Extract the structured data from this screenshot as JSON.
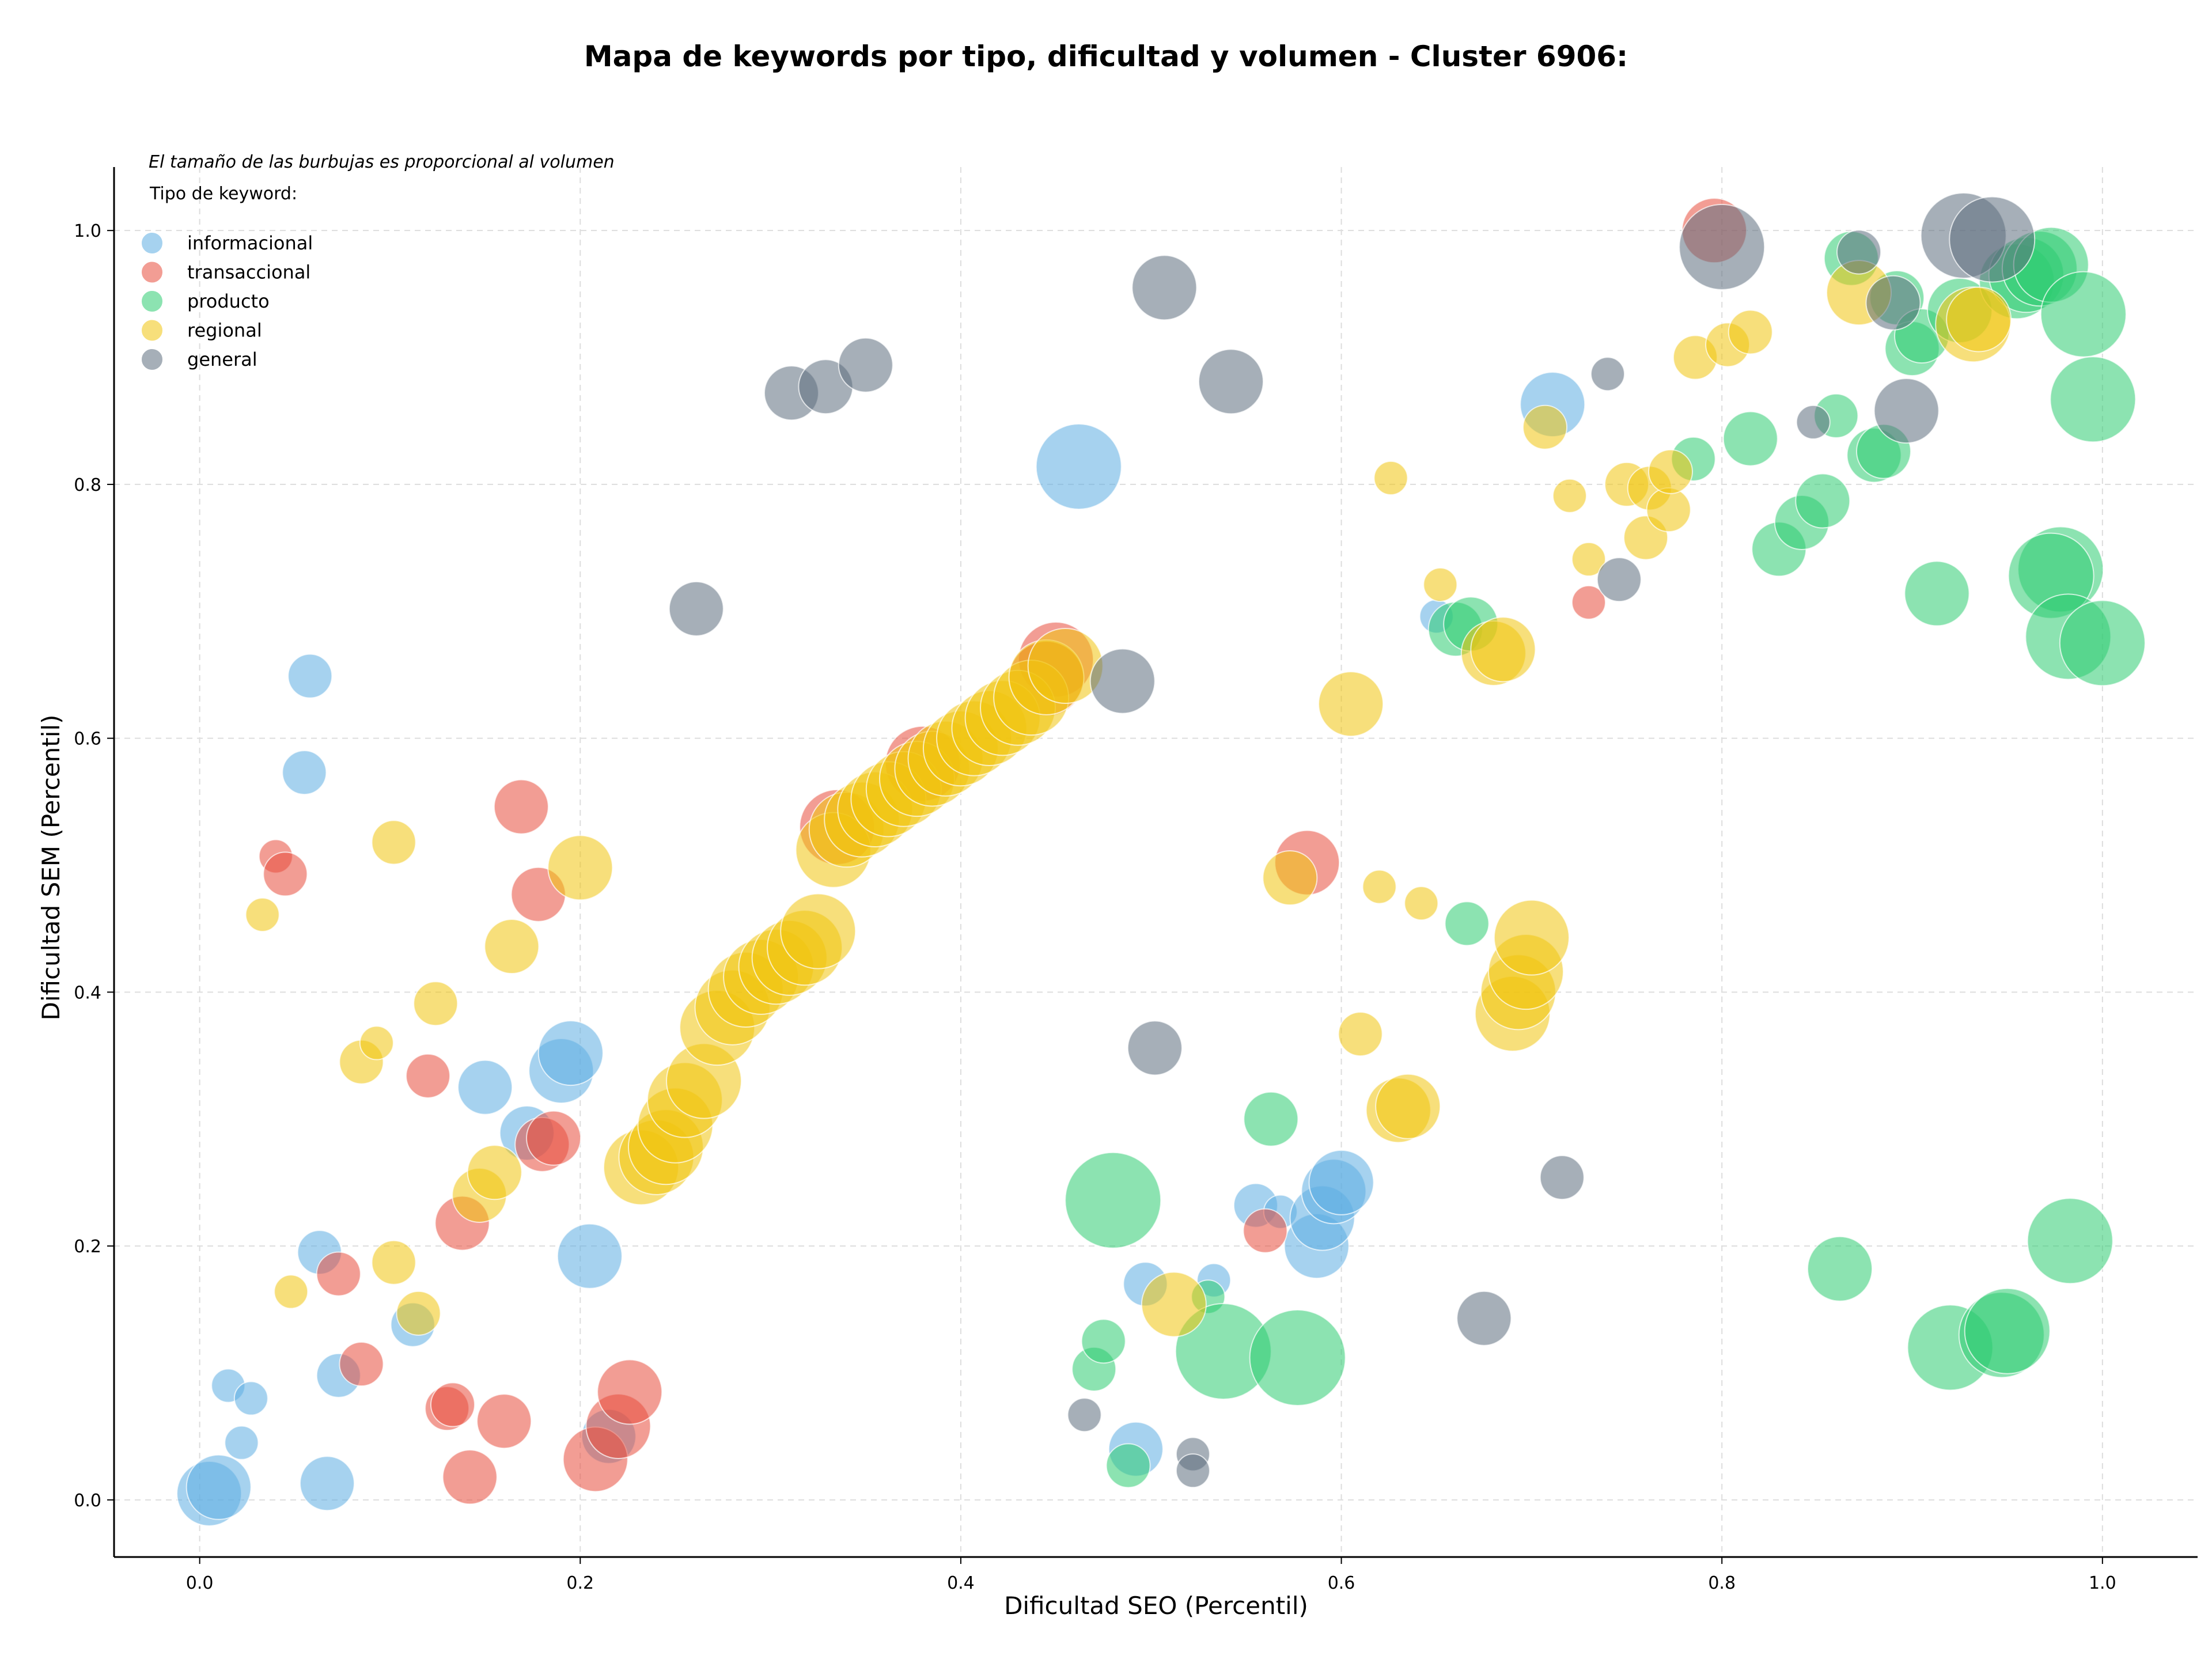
{
  "chart_data": {
    "type": "scatter",
    "title": "Mapa de keywords por tipo, dificultad y volumen - Cluster 6906:",
    "xlabel": "Dificultad SEO (Percentil)",
    "ylabel": "Dificultad SEM (Percentil)",
    "xlim": [
      -0.045,
      1.05
    ],
    "ylim": [
      -0.045,
      1.05
    ],
    "xticks": [
      0.0,
      0.2,
      0.4,
      0.6,
      0.8,
      1.0
    ],
    "yticks": [
      0.0,
      0.2,
      0.4,
      0.6,
      0.8,
      1.0
    ],
    "xtick_labels": [
      "0.0",
      "0.2",
      "0.4",
      "0.6",
      "0.8",
      "1.0"
    ],
    "ytick_labels": [
      "0.0",
      "0.2",
      "0.4",
      "0.6",
      "0.8",
      "1.0"
    ],
    "grid": true,
    "legend": {
      "placement": "top-left",
      "note": "El tamaño de las burbujas es proporcional al volumen",
      "title": "Tipo de keyword:",
      "entries": [
        {
          "name": "informacional",
          "color": "#5dade2"
        },
        {
          "name": "transaccional",
          "color": "#e74c3c"
        },
        {
          "name": "producto",
          "color": "#2ecc71"
        },
        {
          "name": "regional",
          "color": "#f1c40f"
        },
        {
          "name": "general",
          "color": "#5d6d7e"
        }
      ]
    },
    "series": [
      {
        "name": "informacional",
        "color": "#5dade2",
        "points": [
          {
            "x": 0.005,
            "y": 0.005,
            "size": 4
          },
          {
            "x": 0.01,
            "y": 0.01,
            "size": 4
          },
          {
            "x": 0.015,
            "y": 0.09,
            "size": 1
          },
          {
            "x": 0.022,
            "y": 0.045,
            "size": 1
          },
          {
            "x": 0.027,
            "y": 0.08,
            "size": 1
          },
          {
            "x": 0.055,
            "y": 0.573,
            "size": 2
          },
          {
            "x": 0.058,
            "y": 0.649,
            "size": 2
          },
          {
            "x": 0.063,
            "y": 0.195,
            "size": 2
          },
          {
            "x": 0.067,
            "y": 0.013,
            "size": 3
          },
          {
            "x": 0.073,
            "y": 0.098,
            "size": 2
          },
          {
            "x": 0.112,
            "y": 0.138,
            "size": 2
          },
          {
            "x": 0.15,
            "y": 0.325,
            "size": 3
          },
          {
            "x": 0.172,
            "y": 0.289,
            "size": 3
          },
          {
            "x": 0.19,
            "y": 0.338,
            "size": 4
          },
          {
            "x": 0.195,
            "y": 0.352,
            "size": 4
          },
          {
            "x": 0.205,
            "y": 0.192,
            "size": 4
          },
          {
            "x": 0.215,
            "y": 0.05,
            "size": 3
          },
          {
            "x": 0.462,
            "y": 0.814,
            "size": 6
          },
          {
            "x": 0.497,
            "y": 0.17,
            "size": 2
          },
          {
            "x": 0.492,
            "y": 0.04,
            "size": 3
          },
          {
            "x": 0.533,
            "y": 0.173,
            "size": 1
          },
          {
            "x": 0.555,
            "y": 0.232,
            "size": 2
          },
          {
            "x": 0.568,
            "y": 0.227,
            "size": 1
          },
          {
            "x": 0.587,
            "y": 0.2,
            "size": 4
          },
          {
            "x": 0.59,
            "y": 0.222,
            "size": 4
          },
          {
            "x": 0.596,
            "y": 0.243,
            "size": 4
          },
          {
            "x": 0.6,
            "y": 0.25,
            "size": 4
          },
          {
            "x": 0.65,
            "y": 0.696,
            "size": 1
          },
          {
            "x": 0.711,
            "y": 0.863,
            "size": 4
          }
        ]
      },
      {
        "name": "transaccional",
        "color": "#e74c3c",
        "points": [
          {
            "x": 0.04,
            "y": 0.507,
            "size": 1
          },
          {
            "x": 0.045,
            "y": 0.493,
            "size": 2
          },
          {
            "x": 0.073,
            "y": 0.178,
            "size": 2
          },
          {
            "x": 0.085,
            "y": 0.107,
            "size": 2
          },
          {
            "x": 0.12,
            "y": 0.334,
            "size": 2
          },
          {
            "x": 0.13,
            "y": 0.072,
            "size": 2
          },
          {
            "x": 0.133,
            "y": 0.075,
            "size": 2
          },
          {
            "x": 0.138,
            "y": 0.218,
            "size": 3
          },
          {
            "x": 0.142,
            "y": 0.018,
            "size": 3
          },
          {
            "x": 0.16,
            "y": 0.062,
            "size": 3
          },
          {
            "x": 0.169,
            "y": 0.546,
            "size": 3
          },
          {
            "x": 0.178,
            "y": 0.477,
            "size": 3
          },
          {
            "x": 0.18,
            "y": 0.28,
            "size": 3
          },
          {
            "x": 0.186,
            "y": 0.285,
            "size": 3
          },
          {
            "x": 0.208,
            "y": 0.032,
            "size": 4
          },
          {
            "x": 0.22,
            "y": 0.058,
            "size": 4
          },
          {
            "x": 0.226,
            "y": 0.085,
            "size": 4
          },
          {
            "x": 0.335,
            "y": 0.53,
            "size": 5
          },
          {
            "x": 0.38,
            "y": 0.58,
            "size": 5
          },
          {
            "x": 0.45,
            "y": 0.662,
            "size": 5
          },
          {
            "x": 0.445,
            "y": 0.647,
            "size": 5
          },
          {
            "x": 0.56,
            "y": 0.212,
            "size": 2
          },
          {
            "x": 0.582,
            "y": 0.502,
            "size": 4
          },
          {
            "x": 0.73,
            "y": 0.707,
            "size": 1
          },
          {
            "x": 0.796,
            "y": 1.0,
            "size": 4
          }
        ]
      },
      {
        "name": "producto",
        "color": "#2ecc71",
        "points": [
          {
            "x": 0.48,
            "y": 0.236,
            "size": 7
          },
          {
            "x": 0.47,
            "y": 0.103,
            "size": 2
          },
          {
            "x": 0.475,
            "y": 0.125,
            "size": 2
          },
          {
            "x": 0.488,
            "y": 0.027,
            "size": 2
          },
          {
            "x": 0.53,
            "y": 0.16,
            "size": 1
          },
          {
            "x": 0.538,
            "y": 0.117,
            "size": 7
          },
          {
            "x": 0.563,
            "y": 0.3,
            "size": 3
          },
          {
            "x": 0.577,
            "y": 0.112,
            "size": 7
          },
          {
            "x": 0.66,
            "y": 0.686,
            "size": 3
          },
          {
            "x": 0.668,
            "y": 0.69,
            "size": 3
          },
          {
            "x": 0.666,
            "y": 0.454,
            "size": 2
          },
          {
            "x": 0.785,
            "y": 0.82,
            "size": 2
          },
          {
            "x": 0.815,
            "y": 0.836,
            "size": 3
          },
          {
            "x": 0.83,
            "y": 0.749,
            "size": 3
          },
          {
            "x": 0.842,
            "y": 0.77,
            "size": 3
          },
          {
            "x": 0.853,
            "y": 0.787,
            "size": 3
          },
          {
            "x": 0.86,
            "y": 0.854,
            "size": 2
          },
          {
            "x": 0.862,
            "y": 0.182,
            "size": 4
          },
          {
            "x": 0.868,
            "y": 0.978,
            "size": 3
          },
          {
            "x": 0.88,
            "y": 0.823,
            "size": 3
          },
          {
            "x": 0.885,
            "y": 0.826,
            "size": 3
          },
          {
            "x": 0.892,
            "y": 0.947,
            "size": 3
          },
          {
            "x": 0.9,
            "y": 0.907,
            "size": 3
          },
          {
            "x": 0.905,
            "y": 0.917,
            "size": 3
          },
          {
            "x": 0.913,
            "y": 0.714,
            "size": 4
          },
          {
            "x": 0.92,
            "y": 0.12,
            "size": 6
          },
          {
            "x": 0.925,
            "y": 0.937,
            "size": 4
          },
          {
            "x": 0.947,
            "y": 0.13,
            "size": 6
          },
          {
            "x": 0.95,
            "y": 0.133,
            "size": 6
          },
          {
            "x": 0.955,
            "y": 0.96,
            "size": 5
          },
          {
            "x": 0.96,
            "y": 0.965,
            "size": 5
          },
          {
            "x": 0.967,
            "y": 0.97,
            "size": 5
          },
          {
            "x": 0.973,
            "y": 0.973,
            "size": 5
          },
          {
            "x": 0.978,
            "y": 0.733,
            "size": 6
          },
          {
            "x": 0.973,
            "y": 0.728,
            "size": 6
          },
          {
            "x": 0.982,
            "y": 0.68,
            "size": 6
          },
          {
            "x": 0.983,
            "y": 0.204,
            "size": 6
          },
          {
            "x": 0.99,
            "y": 0.934,
            "size": 6
          },
          {
            "x": 0.995,
            "y": 0.867,
            "size": 6
          },
          {
            "x": 1.0,
            "y": 0.675,
            "size": 6
          }
        ]
      },
      {
        "name": "regional",
        "color": "#f1c40f",
        "points": [
          {
            "x": 0.033,
            "y": 0.461,
            "size": 1
          },
          {
            "x": 0.048,
            "y": 0.164,
            "size": 1
          },
          {
            "x": 0.085,
            "y": 0.345,
            "size": 2
          },
          {
            "x": 0.093,
            "y": 0.36,
            "size": 1
          },
          {
            "x": 0.102,
            "y": 0.518,
            "size": 2
          },
          {
            "x": 0.102,
            "y": 0.187,
            "size": 2
          },
          {
            "x": 0.115,
            "y": 0.147,
            "size": 2
          },
          {
            "x": 0.124,
            "y": 0.391,
            "size": 2
          },
          {
            "x": 0.147,
            "y": 0.24,
            "size": 3
          },
          {
            "x": 0.155,
            "y": 0.258,
            "size": 3
          },
          {
            "x": 0.164,
            "y": 0.436,
            "size": 3
          },
          {
            "x": 0.2,
            "y": 0.498,
            "size": 4
          },
          {
            "x": 0.232,
            "y": 0.262,
            "size": 5
          },
          {
            "x": 0.24,
            "y": 0.27,
            "size": 5
          },
          {
            "x": 0.245,
            "y": 0.278,
            "size": 5
          },
          {
            "x": 0.25,
            "y": 0.295,
            "size": 5
          },
          {
            "x": 0.255,
            "y": 0.315,
            "size": 5
          },
          {
            "x": 0.265,
            "y": 0.33,
            "size": 5
          },
          {
            "x": 0.272,
            "y": 0.372,
            "size": 5
          },
          {
            "x": 0.28,
            "y": 0.388,
            "size": 5
          },
          {
            "x": 0.287,
            "y": 0.402,
            "size": 5
          },
          {
            "x": 0.295,
            "y": 0.412,
            "size": 5
          },
          {
            "x": 0.303,
            "y": 0.42,
            "size": 5
          },
          {
            "x": 0.31,
            "y": 0.427,
            "size": 5
          },
          {
            "x": 0.318,
            "y": 0.435,
            "size": 5
          },
          {
            "x": 0.325,
            "y": 0.448,
            "size": 5
          },
          {
            "x": 0.333,
            "y": 0.512,
            "size": 5
          },
          {
            "x": 0.34,
            "y": 0.528,
            "size": 5
          },
          {
            "x": 0.348,
            "y": 0.536,
            "size": 5
          },
          {
            "x": 0.355,
            "y": 0.544,
            "size": 5
          },
          {
            "x": 0.362,
            "y": 0.552,
            "size": 5
          },
          {
            "x": 0.37,
            "y": 0.56,
            "size": 5
          },
          {
            "x": 0.377,
            "y": 0.568,
            "size": 5
          },
          {
            "x": 0.385,
            "y": 0.576,
            "size": 5
          },
          {
            "x": 0.392,
            "y": 0.584,
            "size": 5
          },
          {
            "x": 0.4,
            "y": 0.592,
            "size": 5
          },
          {
            "x": 0.407,
            "y": 0.6,
            "size": 5
          },
          {
            "x": 0.415,
            "y": 0.608,
            "size": 5
          },
          {
            "x": 0.422,
            "y": 0.616,
            "size": 5
          },
          {
            "x": 0.43,
            "y": 0.624,
            "size": 5
          },
          {
            "x": 0.437,
            "y": 0.632,
            "size": 5
          },
          {
            "x": 0.445,
            "y": 0.648,
            "size": 5
          },
          {
            "x": 0.455,
            "y": 0.657,
            "size": 5
          },
          {
            "x": 0.512,
            "y": 0.154,
            "size": 4
          },
          {
            "x": 0.573,
            "y": 0.49,
            "size": 3
          },
          {
            "x": 0.605,
            "y": 0.627,
            "size": 4
          },
          {
            "x": 0.61,
            "y": 0.367,
            "size": 2
          },
          {
            "x": 0.62,
            "y": 0.483,
            "size": 1
          },
          {
            "x": 0.626,
            "y": 0.805,
            "size": 1
          },
          {
            "x": 0.63,
            "y": 0.307,
            "size": 4
          },
          {
            "x": 0.635,
            "y": 0.31,
            "size": 4
          },
          {
            "x": 0.642,
            "y": 0.47,
            "size": 1
          },
          {
            "x": 0.652,
            "y": 0.721,
            "size": 1
          },
          {
            "x": 0.68,
            "y": 0.667,
            "size": 4
          },
          {
            "x": 0.685,
            "y": 0.67,
            "size": 4
          },
          {
            "x": 0.69,
            "y": 0.383,
            "size": 5
          },
          {
            "x": 0.693,
            "y": 0.4,
            "size": 5
          },
          {
            "x": 0.697,
            "y": 0.416,
            "size": 5
          },
          {
            "x": 0.7,
            "y": 0.443,
            "size": 5
          },
          {
            "x": 0.707,
            "y": 0.845,
            "size": 2
          },
          {
            "x": 0.72,
            "y": 0.791,
            "size": 1
          },
          {
            "x": 0.73,
            "y": 0.741,
            "size": 1
          },
          {
            "x": 0.75,
            "y": 0.8,
            "size": 2
          },
          {
            "x": 0.76,
            "y": 0.758,
            "size": 2
          },
          {
            "x": 0.762,
            "y": 0.797,
            "size": 2
          },
          {
            "x": 0.772,
            "y": 0.78,
            "size": 2
          },
          {
            "x": 0.773,
            "y": 0.81,
            "size": 2
          },
          {
            "x": 0.786,
            "y": 0.9,
            "size": 2
          },
          {
            "x": 0.803,
            "y": 0.91,
            "size": 2
          },
          {
            "x": 0.815,
            "y": 0.92,
            "size": 2
          },
          {
            "x": 0.872,
            "y": 0.951,
            "size": 4
          },
          {
            "x": 0.932,
            "y": 0.926,
            "size": 5
          },
          {
            "x": 0.935,
            "y": 0.93,
            "size": 4
          }
        ]
      },
      {
        "name": "general",
        "color": "#5d6d7e",
        "points": [
          {
            "x": 0.261,
            "y": 0.702,
            "size": 3
          },
          {
            "x": 0.311,
            "y": 0.872,
            "size": 3
          },
          {
            "x": 0.329,
            "y": 0.877,
            "size": 3
          },
          {
            "x": 0.35,
            "y": 0.894,
            "size": 3
          },
          {
            "x": 0.465,
            "y": 0.067,
            "size": 1
          },
          {
            "x": 0.485,
            "y": 0.645,
            "size": 4
          },
          {
            "x": 0.502,
            "y": 0.356,
            "size": 3
          },
          {
            "x": 0.507,
            "y": 0.955,
            "size": 4
          },
          {
            "x": 0.522,
            "y": 0.036,
            "size": 1
          },
          {
            "x": 0.522,
            "y": 0.023,
            "size": 1
          },
          {
            "x": 0.542,
            "y": 0.881,
            "size": 4
          },
          {
            "x": 0.675,
            "y": 0.143,
            "size": 3
          },
          {
            "x": 0.716,
            "y": 0.254,
            "size": 2
          },
          {
            "x": 0.74,
            "y": 0.887,
            "size": 1
          },
          {
            "x": 0.746,
            "y": 0.725,
            "size": 2
          },
          {
            "x": 0.8,
            "y": 0.987,
            "size": 6
          },
          {
            "x": 0.848,
            "y": 0.849,
            "size": 1
          },
          {
            "x": 0.872,
            "y": 0.983,
            "size": 2
          },
          {
            "x": 0.89,
            "y": 0.943,
            "size": 3
          },
          {
            "x": 0.897,
            "y": 0.858,
            "size": 4
          },
          {
            "x": 0.927,
            "y": 0.996,
            "size": 6
          },
          {
            "x": 0.942,
            "y": 0.993,
            "size": 6
          }
        ]
      }
    ]
  }
}
